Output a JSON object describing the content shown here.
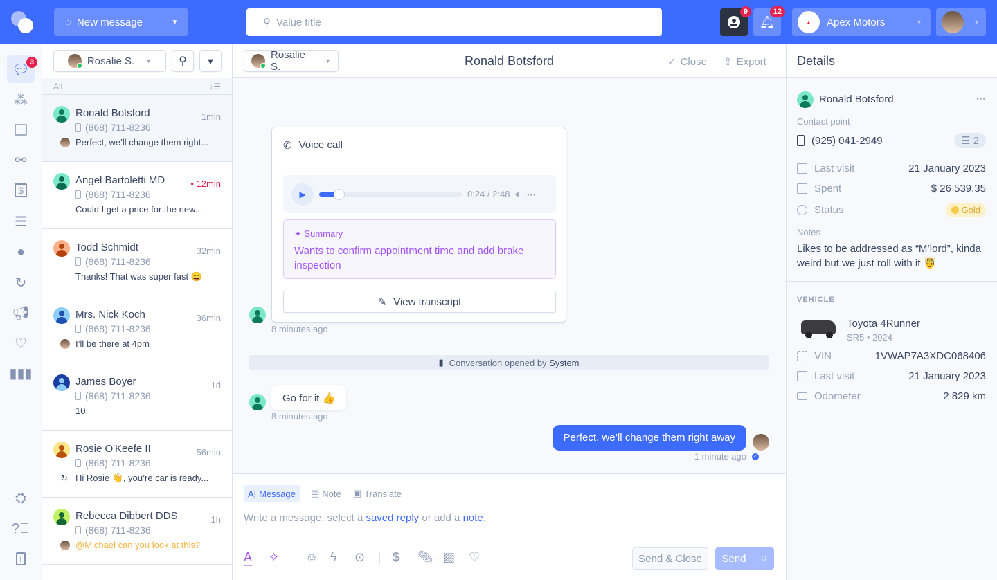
{
  "colors": {
    "brand": "#3d6bfe",
    "badge": "#e8204e",
    "summary": "#a052f5",
    "unread": "#e8204e",
    "mention": "#f5b642",
    "gold": "#d9a520"
  },
  "topbar": {
    "new_message": "New message",
    "search_placeholder": "Value title",
    "inbox_badge": "9",
    "notifications_badge": "12",
    "company": "Apex Motors",
    "company_logo_text": "APEX MOTORS"
  },
  "rail": {
    "messages_badge": "3",
    "icons": [
      "chat-icon",
      "contacts-icon",
      "calendar-icon",
      "workflow-icon",
      "payments-icon",
      "invoices-icon",
      "person-icon",
      "automation-icon",
      "campaign-icon",
      "reviews-icon",
      "reports-icon",
      "support-icon",
      "help-icon",
      "info-icon"
    ]
  },
  "list": {
    "assignee": "Rosalie S.",
    "filter": "All",
    "items": [
      {
        "name": "Ronald Botsford",
        "time": "1min",
        "phone": "(868) 711-8236",
        "preview": "Perfect, we’ll change them right...",
        "bg": "#7ae8c9",
        "fg": "#0f7a5a",
        "unread": false,
        "preview_type": "agent"
      },
      {
        "name": "Angel Bartoletti MD",
        "time": "12min",
        "phone": "(868) 711-8236",
        "preview": "Could I get a price for the new...",
        "bg": "#7ae8c9",
        "fg": "#0c6b4f",
        "unread": true,
        "preview_type": "none"
      },
      {
        "name": "Todd Schmidt",
        "time": "32min",
        "phone": "(868) 711-8236",
        "preview": "Thanks! That was super fast 😄",
        "bg": "#fbb089",
        "fg": "#b3420f",
        "unread": false,
        "preview_type": "none"
      },
      {
        "name": "Mrs. Nick Koch",
        "time": "36min",
        "phone": "(868) 711-8236",
        "preview": "I’ll be there at 4pm",
        "bg": "#8ecdf7",
        "fg": "#1f4fb0",
        "unread": false,
        "preview_type": "agent2"
      },
      {
        "name": "James Boyer",
        "time": "1d",
        "phone": "(868) 711-8236",
        "preview": "10",
        "bg": "#1a3fa0",
        "fg": "#8ecdf7",
        "unread": false,
        "preview_type": "none"
      },
      {
        "name": "Rosie O'Keefe II",
        "time": "56min",
        "phone": "(868) 711-8236",
        "preview": "Hi Rosie 👋, you’re car is ready...",
        "bg": "#fde68a",
        "fg": "#b45309",
        "unread": false,
        "preview_type": "automation"
      },
      {
        "name": "Rebecca Dibbert DDS",
        "time": "1h",
        "phone": "(868) 711-8236",
        "preview": "@Michael can you look at this?",
        "bg": "#bef264",
        "fg": "#166534",
        "unread": false,
        "preview_type": "mention"
      }
    ]
  },
  "chat": {
    "assignee": "Rosalie S.",
    "title": "Ronald Botsford",
    "close": "Close",
    "export": "Export",
    "voice_call": {
      "title": "Voice call",
      "time": "0:24 / 2:48",
      "progress": 0.14,
      "summary_label": "Summary",
      "summary": "Wants to confirm appointment time and add brake inspection",
      "view_transcript": "View transcript",
      "timestamp": "8 minutes ago"
    },
    "system": {
      "text": "Conversation opened by ",
      "actor": "System"
    },
    "messages": [
      {
        "text": "Go for it 👍",
        "time": "8 minutes ago",
        "direction": "in"
      },
      {
        "text": "Perfect, we’ll change them right away",
        "time": "1 minute ago",
        "direction": "out"
      }
    ],
    "composer": {
      "tabs": [
        "Message",
        "Note",
        "Translate"
      ],
      "placeholder_1": "Write a message, select a ",
      "saved_reply": "saved reply",
      "placeholder_2": " or add a ",
      "note": "note",
      "placeholder_3": ".",
      "send_close": "Send & Close",
      "send": "Send"
    }
  },
  "details": {
    "title": "Details",
    "name": "Ronald Botsford",
    "contact_point_label": "Contact point",
    "phone": "(925) 041-2949",
    "phone_count": "2",
    "rows": [
      {
        "label": "Last visit",
        "value": "21 January 2023"
      },
      {
        "label": "Spent",
        "value": "$ 26 539.35"
      },
      {
        "label": "Status",
        "value": "Gold"
      }
    ],
    "notes_label": "Notes",
    "notes": "Likes to be addressed as “M’lord”, kinda weird but we just roll with it 🤴",
    "vehicle": {
      "section": "VEHICLE",
      "model": "Toyota 4Runner",
      "trim": "SR5 • 2024",
      "rows": [
        {
          "label": "VIN",
          "value": "1VWAP7A3XDC068406"
        },
        {
          "label": "Last visit",
          "value": "21 January 2023"
        },
        {
          "label": "Odometer",
          "value": "2 829 km"
        }
      ]
    }
  }
}
